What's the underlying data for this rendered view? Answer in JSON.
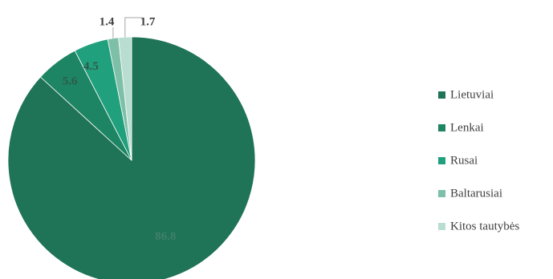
{
  "chart_data": {
    "type": "pie",
    "title": "",
    "start_angle_deg": 0,
    "direction": "clockwise",
    "legend_position": "right",
    "slices": [
      {
        "label": "Lietuviai",
        "value": 86.8,
        "display": "86.8",
        "color": "#1f7357"
      },
      {
        "label": "Lenkai",
        "value": 5.6,
        "display": "5.6",
        "color": "#1d8563"
      },
      {
        "label": "Rusai",
        "value": 4.5,
        "display": "4.5",
        "color": "#21a07d"
      },
      {
        "label": "Baltarusiai",
        "value": 1.4,
        "display": "1.4",
        "color": "#7ebfa8"
      },
      {
        "label": "Kitos tautybės",
        "value": 1.7,
        "display": "1.7",
        "color": "#b9ddd0"
      }
    ]
  }
}
